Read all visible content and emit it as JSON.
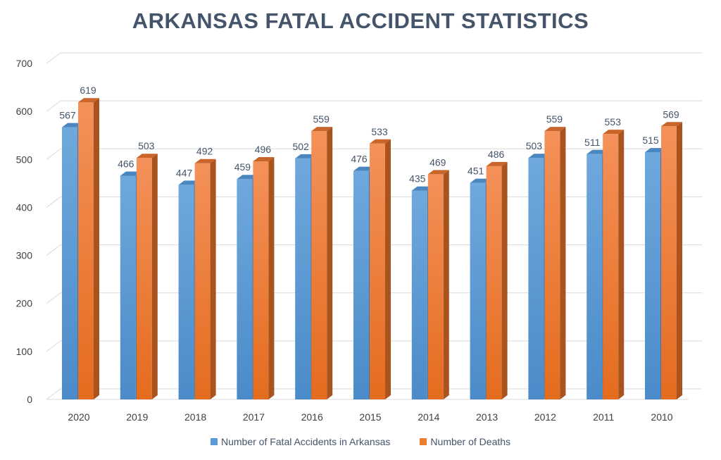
{
  "chart_data": {
    "type": "bar",
    "title": "ARKANSAS FATAL ACCIDENT STATISTICS",
    "categories": [
      "2020",
      "2019",
      "2018",
      "2017",
      "2016",
      "2015",
      "2014",
      "2013",
      "2012",
      "2011",
      "2010"
    ],
    "series": [
      {
        "name": "Number of Fatal Accidents in Arkansas",
        "color": "#5b9bd5",
        "values": [
          567,
          466,
          447,
          459,
          502,
          476,
          435,
          451,
          503,
          511,
          515
        ]
      },
      {
        "name": "Number of Deaths",
        "color": "#ed7d31",
        "values": [
          619,
          503,
          492,
          496,
          559,
          533,
          469,
          486,
          559,
          553,
          569
        ]
      }
    ],
    "yticks": [
      "0",
      "100",
      "200",
      "300",
      "400",
      "500",
      "600",
      "700"
    ],
    "ylim": [
      0,
      700
    ],
    "xlabel": "",
    "ylabel": "",
    "grid": true,
    "legend": "bottom"
  }
}
